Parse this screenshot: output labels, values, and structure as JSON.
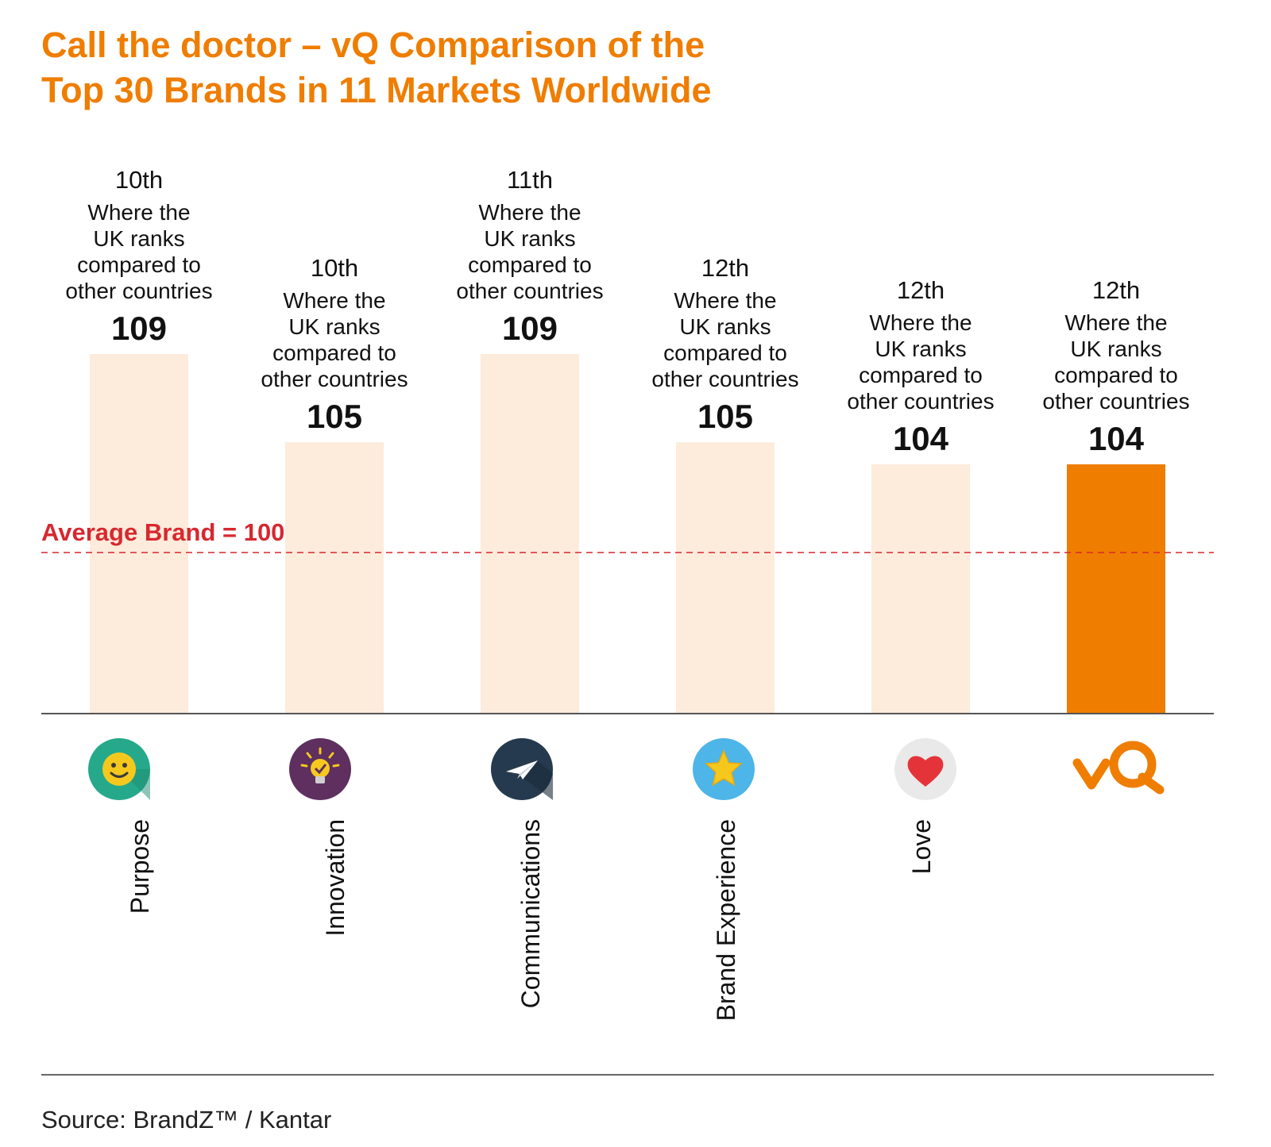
{
  "title": {
    "line1": "Call the doctor – vQ Comparison of the",
    "line2": "Top 30 Brands in 11 Markets Worldwide"
  },
  "source": "Source: BrandZ™ / Kantar",
  "colors": {
    "accent": "#ef7d00",
    "bar_light": "#fdebdb",
    "bar_highlight": "#ef7d00",
    "average_line": "#d7282f",
    "axis": "#555555"
  },
  "chart_data": {
    "type": "bar",
    "title": "Call the doctor – vQ Comparison of the Top 30 Brands in 11 Markets Worldwide",
    "xlabel": "",
    "ylabel": "",
    "categories": [
      "Purpose",
      "Innovation",
      "Communications",
      "Brand Experience",
      "Love",
      ""
    ],
    "values": [
      109,
      105,
      109,
      105,
      104,
      104
    ],
    "highlight_index": 5,
    "ranks": [
      "10th",
      "10th",
      "11th",
      "12th",
      "12th",
      "12th"
    ],
    "rank_description": [
      "Where the",
      "UK ranks",
      "compared to",
      "other countries"
    ],
    "icons": [
      "smiley-icon",
      "lightbulb-icon",
      "paper-plane-icon",
      "star-icon",
      "heart-icon",
      "vq-logo"
    ],
    "reference_line": {
      "value": 100,
      "label": "Average Brand = 100"
    },
    "ylim": [
      92.7,
      109
    ]
  }
}
